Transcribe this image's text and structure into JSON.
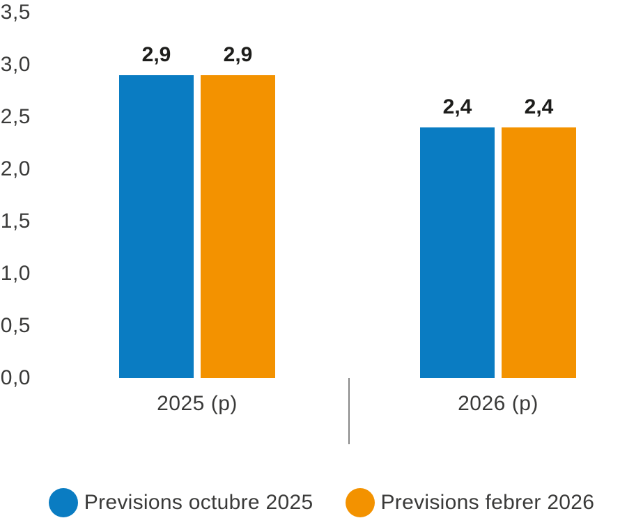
{
  "chart_data": {
    "type": "bar",
    "title": "",
    "categories": [
      "2025 (p)",
      "2026 (p)"
    ],
    "series": [
      {
        "name": "Previsions octubre 2025",
        "color": "#0a7cc2",
        "values": [
          2.9,
          2.4
        ],
        "value_labels": [
          "2,9",
          "2,4"
        ]
      },
      {
        "name": "Previsions febrer 2026",
        "color": "#f39200",
        "values": [
          2.9,
          2.4
        ],
        "value_labels": [
          "2,9",
          "2,4"
        ]
      }
    ],
    "y_axis": {
      "min": 0,
      "max": 3.5,
      "decimal_separator": ",",
      "gridlines": false,
      "ticks": [
        {
          "label": "3,5",
          "value": 3.5
        },
        {
          "label": "3,0",
          "value": 3.0
        },
        {
          "label": "2,5",
          "value": 2.5
        },
        {
          "label": "2,0",
          "value": 2.0
        },
        {
          "label": "1,5",
          "value": 1.5
        },
        {
          "label": "1,0",
          "value": 1.0
        },
        {
          "label": "0,5",
          "value": 0.5
        },
        {
          "label": "0,0",
          "value": 0.0
        }
      ]
    },
    "x_axis": {
      "label": ""
    },
    "legend": {
      "position": "bottom",
      "items": [
        {
          "label": "Previsions octubre 2025",
          "color": "#0a7cc2"
        },
        {
          "label": "Previsions febrer 2026",
          "color": "#f39200"
        }
      ]
    },
    "annotations": {
      "group_divider_between_categories": true
    }
  },
  "colors": {
    "background": "#ffffff",
    "axis_text": "#3a3a39",
    "value_text": "#1d1d1b",
    "divider": "#878787",
    "series_blue": "#0a7cc2",
    "series_orange": "#f39200"
  }
}
